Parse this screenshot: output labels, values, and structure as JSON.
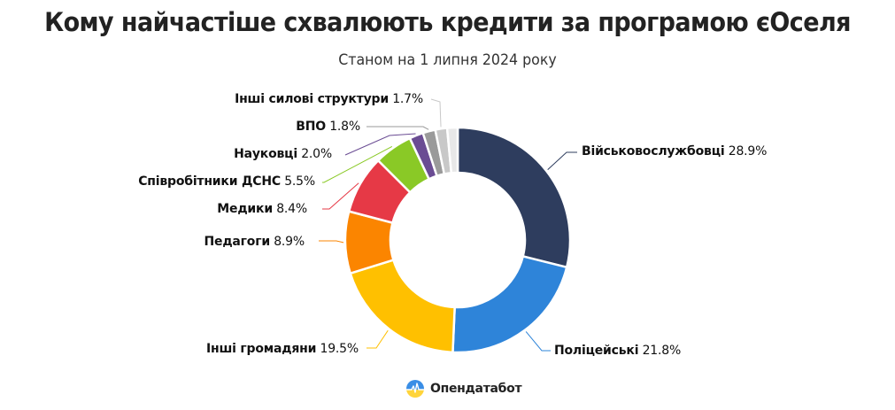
{
  "header": {
    "title": "Кому найчастіше схвалюють кредити за програмою єОселя",
    "subtitle": "Станом на 1 липня 2024 року"
  },
  "footer": {
    "brand": "Опендатабот",
    "logo_icon": "opendatabot-logo-icon"
  },
  "labels": [
    {
      "name": "Військовослужбовці",
      "value": "28.9%"
    },
    {
      "name": "Поліцейські",
      "value": "21.8%"
    },
    {
      "name": "Інші громадяни",
      "value": "19.5%"
    },
    {
      "name": "Педагоги",
      "value": "8.9%"
    },
    {
      "name": "Медики",
      "value": "8.4%"
    },
    {
      "name": "Співробітники ДСНС",
      "value": "5.5%"
    },
    {
      "name": "Науковці",
      "value": "2.0%"
    },
    {
      "name": "ВПО",
      "value": "1.8%"
    },
    {
      "name": "Інші силові структури",
      "value": "1.7%"
    }
  ],
  "chart_data": {
    "type": "pie",
    "subtype": "donut",
    "title": "Кому найчастіше схвалюють кредити за програмою єОселя",
    "subtitle": "Станом на 1 липня 2024 року",
    "unit": "%",
    "categories": [
      "Військовослужбовці",
      "Поліцейські",
      "Інші громадяни",
      "Педагоги",
      "Медики",
      "Співробітники ДСНС",
      "Науковці",
      "ВПО",
      "Інші силові структури",
      "(без підпису)"
    ],
    "values": [
      28.9,
      21.8,
      19.5,
      8.9,
      8.4,
      5.5,
      2.0,
      1.8,
      1.7,
      1.5
    ],
    "colors": [
      "#2e3d5e",
      "#2e84d9",
      "#ffc000",
      "#fb8500",
      "#e63946",
      "#8ac926",
      "#6a4c93",
      "#9a9a9a",
      "#c8c8c8",
      "#e8e8e8"
    ],
    "start_angle": "12 o'clock",
    "direction": "clockwise",
    "legend": "none (direct leader-line labels)",
    "source": "Опендатабот"
  }
}
